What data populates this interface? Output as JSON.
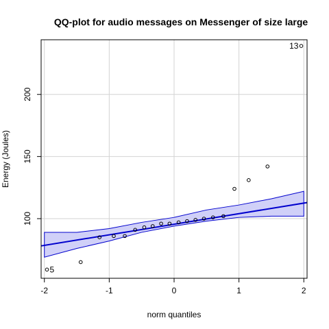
{
  "chart_data": {
    "type": "scatter",
    "title": "QQ-plot for audio messages on Messenger of size large",
    "xlabel": "norm quantiles",
    "ylabel": "Energy (Joules)",
    "xlim": [
      -2.05,
      2.05
    ],
    "ylim": [
      52,
      244
    ],
    "xticks": [
      -2,
      -1,
      0,
      1,
      2
    ],
    "yticks": [
      100,
      150,
      200
    ],
    "grid": true,
    "points": [
      {
        "x": -1.96,
        "y": 59
      },
      {
        "x": -1.44,
        "y": 65
      },
      {
        "x": -1.15,
        "y": 85
      },
      {
        "x": -0.93,
        "y": 86
      },
      {
        "x": -0.76,
        "y": 86
      },
      {
        "x": -0.6,
        "y": 91
      },
      {
        "x": -0.46,
        "y": 93
      },
      {
        "x": -0.33,
        "y": 94
      },
      {
        "x": -0.2,
        "y": 96
      },
      {
        "x": -0.07,
        "y": 96
      },
      {
        "x": 0.07,
        "y": 97
      },
      {
        "x": 0.2,
        "y": 98
      },
      {
        "x": 0.33,
        "y": 99
      },
      {
        "x": 0.46,
        "y": 100
      },
      {
        "x": 0.6,
        "y": 101
      },
      {
        "x": 0.76,
        "y": 102
      },
      {
        "x": 0.93,
        "y": 124
      },
      {
        "x": 1.15,
        "y": 131
      },
      {
        "x": 1.44,
        "y": 142
      },
      {
        "x": 1.96,
        "y": 239
      }
    ],
    "labeled_points": [
      {
        "label": "13",
        "x": 1.96,
        "y": 239,
        "side": "left"
      },
      {
        "label": "5",
        "x": -1.96,
        "y": 59,
        "side": "right"
      }
    ],
    "reference_line": {
      "intercept": 95.5,
      "slope": 8.5
    },
    "envelope": {
      "x": [
        -2.0,
        -1.5,
        -1.0,
        -0.5,
        0.0,
        0.5,
        1.0,
        1.5,
        2.0
      ],
      "lower": [
        69,
        76,
        82,
        89,
        94,
        98,
        101,
        102,
        102
      ],
      "upper": [
        89,
        89,
        92,
        97,
        101,
        107,
        111,
        116,
        122
      ]
    },
    "colors": {
      "line": "#0000cd",
      "band_fill": "#d0d0f8",
      "band_edge": "#0000cd",
      "points": "#000000",
      "grid": "#d3d3d3",
      "axis": "#000000"
    }
  }
}
